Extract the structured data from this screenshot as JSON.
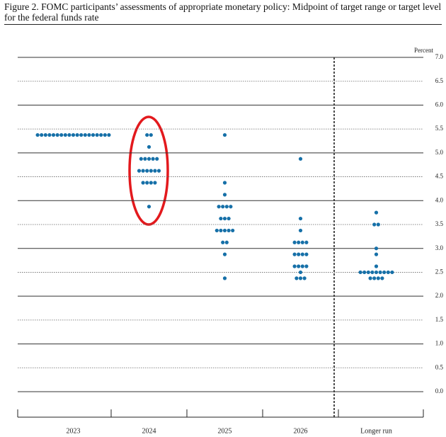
{
  "chart_data": {
    "type": "dot",
    "title": "Figure 2.  FOMC participants’ assessments of appropriate monetary policy:  Midpoint of target range or target level for the federal funds rate",
    "ylabel": "Percent",
    "ylim": [
      0,
      7
    ],
    "yticks": [
      {
        "value": 0,
        "label": "0.0"
      },
      {
        "value": 0.5,
        "label": "0.5"
      },
      {
        "value": 1,
        "label": "1.0"
      },
      {
        "value": 1.5,
        "label": "1.5"
      },
      {
        "value": 2,
        "label": "2.0"
      },
      {
        "value": 2.5,
        "label": "2.5"
      },
      {
        "value": 3,
        "label": "3.0"
      },
      {
        "value": 3.5,
        "label": "3.5"
      },
      {
        "value": 4,
        "label": "4.0"
      },
      {
        "value": 4.5,
        "label": "4.5"
      },
      {
        "value": 5,
        "label": "5.0"
      },
      {
        "value": 5.5,
        "label": "5.5"
      },
      {
        "value": 6,
        "label": "6.0"
      },
      {
        "value": 6.5,
        "label": "6.5"
      },
      {
        "value": 7,
        "label": "7.0"
      }
    ],
    "grid": true,
    "color": "#1670a8",
    "groups": [
      {
        "name": "2023",
        "levels": [
          {
            "rate": 5.375,
            "count": 19
          }
        ]
      },
      {
        "name": "2024",
        "levels": [
          {
            "rate": 5.375,
            "count": 2
          },
          {
            "rate": 5.125,
            "count": 1
          },
          {
            "rate": 4.875,
            "count": 5
          },
          {
            "rate": 4.625,
            "count": 6
          },
          {
            "rate": 4.375,
            "count": 4
          },
          {
            "rate": 3.875,
            "count": 1
          }
        ]
      },
      {
        "name": "2025",
        "levels": [
          {
            "rate": 5.375,
            "count": 1
          },
          {
            "rate": 4.375,
            "count": 1
          },
          {
            "rate": 4.125,
            "count": 1
          },
          {
            "rate": 3.875,
            "count": 4
          },
          {
            "rate": 3.625,
            "count": 3
          },
          {
            "rate": 3.375,
            "count": 5
          },
          {
            "rate": 3.125,
            "count": 2
          },
          {
            "rate": 2.875,
            "count": 1
          },
          {
            "rate": 2.375,
            "count": 1
          }
        ]
      },
      {
        "name": "2026",
        "levels": [
          {
            "rate": 4.875,
            "count": 1
          },
          {
            "rate": 3.625,
            "count": 1
          },
          {
            "rate": 3.375,
            "count": 1
          },
          {
            "rate": 3.125,
            "count": 4
          },
          {
            "rate": 2.875,
            "count": 4
          },
          {
            "rate": 2.625,
            "count": 4
          },
          {
            "rate": 2.5,
            "count": 1
          },
          {
            "rate": 2.375,
            "count": 3
          }
        ]
      },
      {
        "name": "Longer run",
        "levels": [
          {
            "rate": 3.75,
            "count": 1
          },
          {
            "rate": 3.5,
            "count": 2
          },
          {
            "rate": 3.0,
            "count": 1
          },
          {
            "rate": 2.875,
            "count": 1
          },
          {
            "rate": 2.625,
            "count": 1
          },
          {
            "rate": 2.5,
            "count": 9
          },
          {
            "rate": 2.375,
            "count": 4
          }
        ]
      }
    ]
  }
}
